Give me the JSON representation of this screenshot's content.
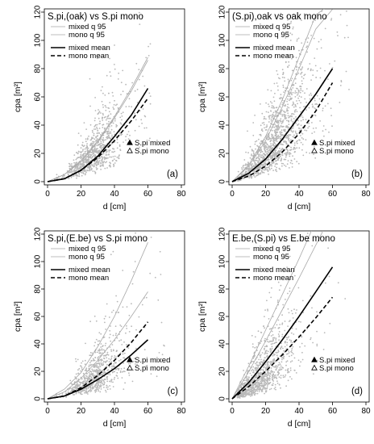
{
  "chart_data": [
    {
      "type": "scatter",
      "title": "S.pi,(oak) vs S.pi mono",
      "label": "(a)",
      "xlabel": "d [cm]",
      "ylabel": "cpa [m²]",
      "xlim": [
        0,
        80
      ],
      "ylim": [
        0,
        120
      ],
      "xticks": [
        0,
        20,
        40,
        60,
        80
      ],
      "yticks": [
        0,
        20,
        40,
        60,
        80,
        100,
        120
      ],
      "legend_top": [
        "mixed q 95",
        "mono q 95",
        "mixed mean",
        "mono mean"
      ],
      "legend_bottom": [
        "S.pi mixed",
        "S.pi mono"
      ],
      "scatter": {
        "x_center": 27,
        "x_sd": 9,
        "x_min": 4,
        "x_max": 62,
        "y_scale": 12,
        "y_exp": 1.5,
        "spread": 0.45,
        "n": 900,
        "seed": 11
      },
      "series": [
        {
          "name": "mixed q 95",
          "style": "thin",
          "x": [
            0,
            10,
            20,
            30,
            40,
            50,
            60
          ],
          "y": [
            0,
            5,
            15,
            29,
            46,
            66,
            88
          ]
        },
        {
          "name": "mono q 95",
          "style": "thin",
          "x": [
            0,
            10,
            20,
            30,
            40,
            50,
            60
          ],
          "y": [
            0,
            5,
            14,
            28,
            45,
            64,
            86
          ]
        },
        {
          "name": "mixed mean",
          "style": "solid",
          "x": [
            0,
            10,
            20,
            30,
            40,
            50,
            60
          ],
          "y": [
            0,
            2,
            8,
            18,
            32,
            47,
            66
          ]
        },
        {
          "name": "mono mean",
          "style": "dashed",
          "x": [
            0,
            10,
            20,
            30,
            40,
            50,
            60
          ],
          "y": [
            0,
            2,
            8,
            17,
            29,
            43,
            59
          ]
        }
      ]
    },
    {
      "type": "scatter",
      "title": "(S.pi),oak vs oak mono",
      "label": "(b)",
      "xlabel": "d [cm]",
      "ylabel": "cpa [m²]",
      "xlim": [
        0,
        80
      ],
      "ylim": [
        0,
        120
      ],
      "xticks": [
        0,
        20,
        40,
        60,
        80
      ],
      "yticks": [
        0,
        20,
        40,
        60,
        80,
        100,
        120
      ],
      "legend_top": [
        "mixed q 95",
        "mono q 95",
        "mixed mean",
        "mono mean"
      ],
      "legend_bottom": [
        "S.pi mixed",
        "S.pi mono"
      ],
      "scatter": {
        "x_center": 24,
        "x_sd": 11,
        "x_min": 3,
        "x_max": 70,
        "y_scale": 20,
        "y_exp": 1.4,
        "spread": 0.5,
        "n": 1400,
        "seed": 23
      },
      "series": [
        {
          "name": "mixed q 95",
          "style": "thin",
          "x": [
            0,
            10,
            20,
            30,
            40,
            50,
            58
          ],
          "y": [
            0,
            12,
            32,
            58,
            88,
            118,
            125
          ]
        },
        {
          "name": "mono q 95",
          "style": "thin",
          "x": [
            0,
            10,
            20,
            30,
            40,
            50,
            60
          ],
          "y": [
            0,
            11,
            29,
            53,
            80,
            108,
            122
          ]
        },
        {
          "name": "mixed mean",
          "style": "solid",
          "x": [
            0,
            10,
            20,
            30,
            40,
            50,
            60
          ],
          "y": [
            0,
            6,
            16,
            30,
            46,
            62,
            80
          ]
        },
        {
          "name": "mono mean",
          "style": "dashed",
          "x": [
            0,
            10,
            20,
            30,
            40,
            50,
            60
          ],
          "y": [
            0,
            4,
            11,
            21,
            34,
            50,
            70
          ]
        }
      ]
    },
    {
      "type": "scatter",
      "title": "S.pi,(E.be) vs S.pi mono",
      "label": "(c)",
      "xlabel": "d [cm]",
      "ylabel": "cpa [m²]",
      "xlim": [
        0,
        80
      ],
      "ylim": [
        0,
        120
      ],
      "xticks": [
        0,
        20,
        40,
        60,
        80
      ],
      "yticks": [
        0,
        20,
        40,
        60,
        80,
        100,
        120
      ],
      "legend_top": [
        "mixed q 95",
        "mono q 95",
        "mixed mean",
        "mono mean"
      ],
      "legend_bottom": [
        "S.pi mixed",
        "S.pi mono"
      ],
      "scatter": {
        "x_center": 27,
        "x_sd": 9,
        "x_min": 5,
        "x_max": 70,
        "y_scale": 10,
        "y_exp": 1.45,
        "spread": 0.5,
        "n": 800,
        "seed": 37
      },
      "series": [
        {
          "name": "mixed q 95",
          "style": "thin",
          "x": [
            0,
            10,
            20,
            30,
            40,
            50,
            60
          ],
          "y": [
            0,
            7,
            19,
            38,
            60,
            86,
            114
          ]
        },
        {
          "name": "mono q 95",
          "style": "thin",
          "x": [
            0,
            10,
            20,
            30,
            40,
            50,
            60
          ],
          "y": [
            0,
            5,
            15,
            28,
            43,
            60,
            78
          ]
        },
        {
          "name": "mixed mean",
          "style": "solid",
          "x": [
            0,
            10,
            20,
            30,
            40,
            50,
            60
          ],
          "y": [
            0,
            2,
            7,
            14,
            22,
            32,
            43
          ]
        },
        {
          "name": "mono mean",
          "style": "dashed",
          "x": [
            0,
            10,
            20,
            30,
            40,
            50,
            60
          ],
          "y": [
            0,
            2,
            8,
            17,
            28,
            41,
            56
          ]
        }
      ]
    },
    {
      "type": "scatter",
      "title": "E.be,(S.pi) vs E.be mono",
      "label": "(d)",
      "xlabel": "d [cm]",
      "ylabel": "cpa [m²]",
      "xlim": [
        0,
        80
      ],
      "ylim": [
        0,
        120
      ],
      "xticks": [
        0,
        20,
        40,
        60,
        80
      ],
      "yticks": [
        0,
        20,
        40,
        60,
        80,
        100,
        120
      ],
      "legend_top": [
        "mixed q 95",
        "mono q 95",
        "mixed mean",
        "mono mean"
      ],
      "legend_bottom": [
        "S.pi mixed",
        "S.pi mono"
      ],
      "scatter": {
        "x_center": 16,
        "x_sd": 10,
        "x_min": 3,
        "x_max": 72,
        "y_scale": 20,
        "y_exp": 1.25,
        "spread": 0.55,
        "n": 1100,
        "seed": 51
      },
      "series": [
        {
          "name": "mixed q 95",
          "style": "thin",
          "x": [
            0,
            10,
            20,
            30,
            40,
            48
          ],
          "y": [
            0,
            24,
            50,
            76,
            102,
            124
          ]
        },
        {
          "name": "mono q 95",
          "style": "thin",
          "x": [
            0,
            10,
            20,
            30,
            40,
            50,
            55
          ],
          "y": [
            0,
            20,
            42,
            65,
            88,
            112,
            124
          ]
        },
        {
          "name": "mixed mean",
          "style": "solid",
          "x": [
            0,
            10,
            20,
            30,
            40,
            50,
            60
          ],
          "y": [
            0,
            12,
            27,
            43,
            60,
            78,
            96
          ]
        },
        {
          "name": "mono mean",
          "style": "dashed",
          "x": [
            0,
            10,
            20,
            30,
            40,
            50,
            60
          ],
          "y": [
            0,
            9,
            20,
            32,
            45,
            59,
            74
          ]
        }
      ]
    }
  ]
}
